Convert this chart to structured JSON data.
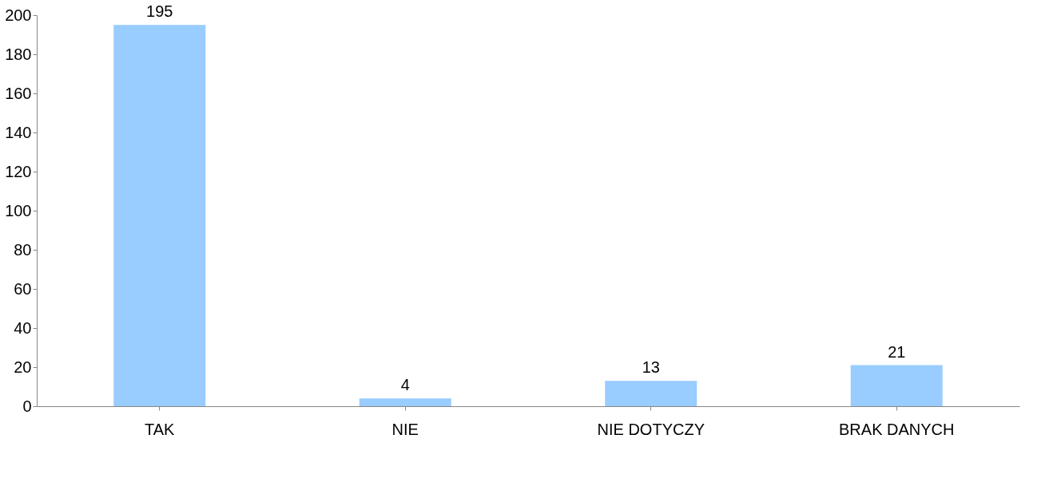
{
  "chart_data": {
    "type": "bar",
    "categories": [
      "TAK",
      "NIE",
      "NIE DOTYCZY",
      "BRAK DANYCH"
    ],
    "values": [
      195,
      4,
      13,
      21
    ],
    "color": "#99ccff",
    "ylim": [
      0,
      200
    ],
    "yticks": [
      0,
      20,
      40,
      60,
      80,
      100,
      120,
      140,
      160,
      180,
      200
    ],
    "data_labels": true,
    "grid": false
  }
}
